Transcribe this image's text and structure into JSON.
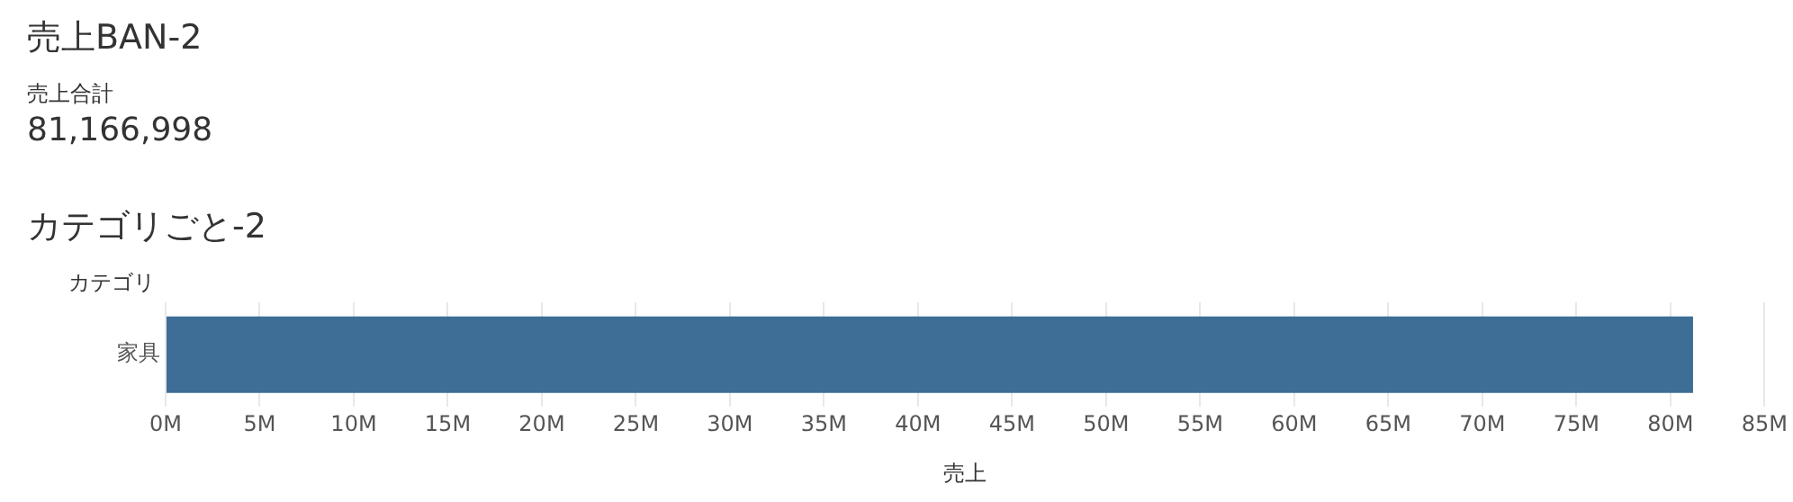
{
  "chart_data": [
    {
      "type": "other",
      "title": "売上BAN-2",
      "annotations": [
        "売上合計",
        "81,166,998"
      ]
    },
    {
      "type": "bar",
      "title": "カテゴリごと-2",
      "orientation": "horizontal",
      "categories": [
        "家具"
      ],
      "values": [
        81.2
      ],
      "color": "#3e6d96",
      "xlim": [
        0,
        85
      ],
      "xticks": [
        {
          "value": 0,
          "label": "0M"
        },
        {
          "value": 5,
          "label": "5M"
        },
        {
          "value": 10,
          "label": "10M"
        },
        {
          "value": 15,
          "label": "15M"
        },
        {
          "value": 20,
          "label": "20M"
        },
        {
          "value": 25,
          "label": "25M"
        },
        {
          "value": 30,
          "label": "30M"
        },
        {
          "value": 35,
          "label": "35M"
        },
        {
          "value": 40,
          "label": "40M"
        },
        {
          "value": 45,
          "label": "45M"
        },
        {
          "value": 50,
          "label": "50M"
        },
        {
          "value": 55,
          "label": "55M"
        },
        {
          "value": 60,
          "label": "60M"
        },
        {
          "value": 65,
          "label": "65M"
        },
        {
          "value": 70,
          "label": "70M"
        },
        {
          "value": 75,
          "label": "75M"
        },
        {
          "value": 80,
          "label": "80M"
        },
        {
          "value": 85,
          "label": "85M"
        }
      ],
      "xlabel": "売上",
      "ylabel": "カテゴリ",
      "grid": "x",
      "legend": false
    }
  ]
}
